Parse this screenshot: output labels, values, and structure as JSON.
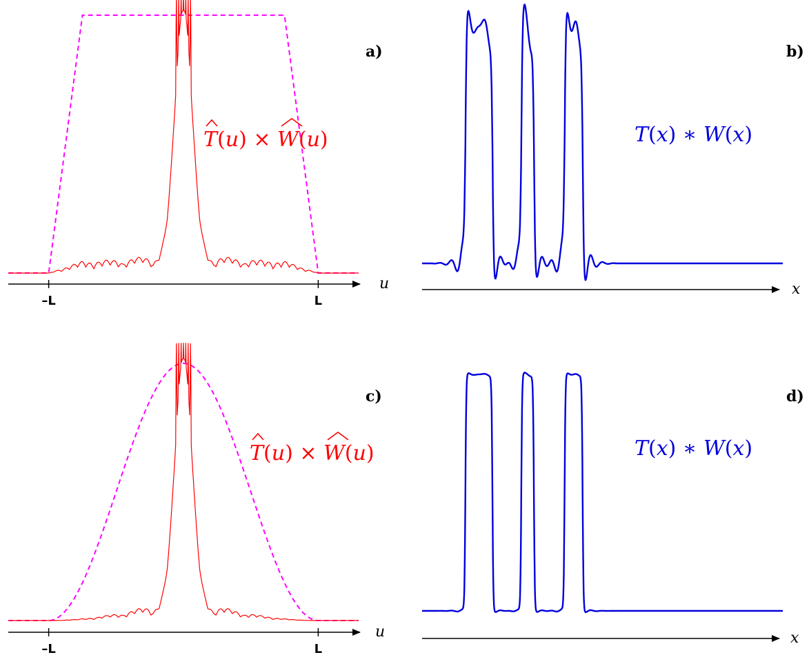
{
  "colors": {
    "spectrum": "#ff0000",
    "window": "#ff00ff",
    "signal": "#0000dd",
    "axis": "#000000"
  },
  "chart_data": [
    {
      "id": "a",
      "type": "line",
      "panel_label": "a)",
      "xlabel": "u",
      "xlim": [
        -1.3,
        1.3
      ],
      "ylim": [
        0,
        1.0
      ],
      "xticks": [
        {
          "value": -1,
          "label": "–L"
        },
        {
          "value": 1,
          "label": "L"
        }
      ],
      "annotation": {
        "T": "T",
        "u": "u",
        "times": "×",
        "W": "W"
      },
      "series": [
        {
          "kind": "window",
          "style": "dashed",
          "shape": "trapezoid",
          "points": [
            [
              -1.3,
              0
            ],
            [
              -1.0,
              0
            ],
            [
              -0.75,
              1.0
            ],
            [
              0.75,
              1.0
            ],
            [
              1.0,
              0
            ],
            [
              1.3,
              0
            ]
          ]
        },
        {
          "kind": "spectrum",
          "style": "solid",
          "shape": "dirichlet-like",
          "peak": 1.08,
          "cutoff": 1.0,
          "taper": "trapezoid"
        }
      ]
    },
    {
      "id": "b",
      "type": "line",
      "panel_label": "b)",
      "xlabel": "x",
      "xlim": [
        0,
        10
      ],
      "ylim": [
        -0.15,
        1.3
      ],
      "annotation": {
        "T": "T",
        "x": "x",
        "star": "∗",
        "W": "W"
      },
      "series": [
        {
          "kind": "signal",
          "style": "solid",
          "steps": [
            [
              0,
              0
            ],
            [
              1.2,
              1
            ],
            [
              1.95,
              0
            ],
            [
              2.75,
              1
            ],
            [
              3.1,
              0
            ],
            [
              3.95,
              1
            ],
            [
              4.45,
              0
            ]
          ],
          "overshoot": 0.12,
          "ringing": "strong"
        }
      ]
    },
    {
      "id": "c",
      "type": "line",
      "panel_label": "c)",
      "xlabel": "u",
      "xlim": [
        -1.3,
        1.3
      ],
      "ylim": [
        0,
        1.0
      ],
      "xticks": [
        {
          "value": -1,
          "label": "–L"
        },
        {
          "value": 1,
          "label": "L"
        }
      ],
      "annotation": {
        "T": "T",
        "u": "u",
        "times": "×",
        "W": "W"
      },
      "series": [
        {
          "kind": "window",
          "style": "dashed",
          "shape": "raised-cosine",
          "points": [
            [
              -1.3,
              0
            ],
            [
              -1.0,
              0
            ],
            [
              0,
              1.0
            ],
            [
              1.0,
              0
            ],
            [
              1.3,
              0
            ]
          ]
        },
        {
          "kind": "spectrum",
          "style": "solid",
          "shape": "dirichlet-like",
          "peak": 1.08,
          "cutoff": 1.0,
          "taper": "raised-cosine"
        }
      ]
    },
    {
      "id": "d",
      "type": "line",
      "panel_label": "d)",
      "xlabel": "x",
      "xlim": [
        0,
        10
      ],
      "ylim": [
        -0.15,
        1.3
      ],
      "annotation": {
        "T": "T",
        "x": "x",
        "star": "∗",
        "W": "W"
      },
      "series": [
        {
          "kind": "signal",
          "style": "solid",
          "steps": [
            [
              0,
              0
            ],
            [
              1.2,
              1
            ],
            [
              1.95,
              0
            ],
            [
              2.75,
              1
            ],
            [
              3.1,
              0
            ],
            [
              3.95,
              1
            ],
            [
              4.45,
              0
            ]
          ],
          "overshoot": 0.01,
          "ringing": "weak"
        }
      ]
    }
  ]
}
